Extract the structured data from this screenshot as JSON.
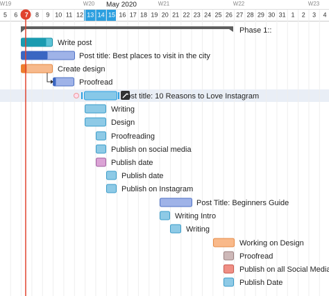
{
  "header": {
    "month": "May 2020",
    "weeks": [
      "W19",
      "W20",
      "W21",
      "W22",
      "W23"
    ],
    "days": [
      5,
      6,
      7,
      8,
      9,
      10,
      11,
      12,
      13,
      14,
      15,
      16,
      17,
      18,
      19,
      20,
      21,
      22,
      23,
      24,
      25,
      26,
      27,
      28,
      29,
      30,
      31,
      1,
      2,
      3,
      4
    ]
  },
  "tasks": [
    {
      "label": "Phase 1::"
    },
    {
      "label": "Write post"
    },
    {
      "label": "Post title: Best places to visit in the city"
    },
    {
      "label": "Create design"
    },
    {
      "label": "Proofread"
    },
    {
      "label": "Post title: 10 Reasons to Love Instagram"
    },
    {
      "label": "Writing"
    },
    {
      "label": "Design"
    },
    {
      "label": "Proofreading"
    },
    {
      "label": "Publish on social media"
    },
    {
      "label": "Publish date"
    },
    {
      "label": "Publish date"
    },
    {
      "label": "Publish on Instagram"
    },
    {
      "label": "Post Title: Beginners Guide"
    },
    {
      "label": "Writing Intro"
    },
    {
      "label": "Writing"
    },
    {
      "label": "Working on Design"
    },
    {
      "label": "Proofread"
    },
    {
      "label": "Publish on all Social Media"
    },
    {
      "label": "Publish Date"
    }
  ]
}
